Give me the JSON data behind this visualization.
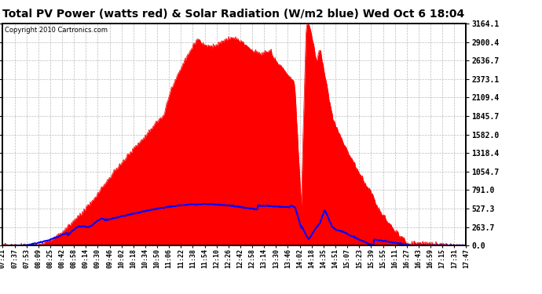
{
  "title": "Total PV Power (watts red) & Solar Radiation (W/m2 blue) Wed Oct 6 18:04",
  "copyright": "Copyright 2010 Cartronics.com",
  "yticks": [
    0.0,
    263.7,
    527.3,
    791.0,
    1054.7,
    1318.4,
    1582.0,
    1845.7,
    2109.4,
    2373.1,
    2636.7,
    2900.4,
    3164.1
  ],
  "ymax": 3164.1,
  "background_color": "#ffffff",
  "plot_bg_color": "#ffffff",
  "grid_color": "#aaaaaa",
  "fill_color": "#ff0000",
  "line_color": "#0000ff",
  "title_fontsize": 10,
  "x_tick_labels": [
    "07:21",
    "07:37",
    "07:53",
    "08:09",
    "08:25",
    "08:42",
    "08:58",
    "09:14",
    "09:30",
    "09:46",
    "10:02",
    "10:18",
    "10:34",
    "10:50",
    "11:06",
    "11:22",
    "11:38",
    "11:54",
    "12:10",
    "12:26",
    "12:42",
    "12:58",
    "13:14",
    "13:30",
    "13:46",
    "14:02",
    "14:18",
    "14:35",
    "14:51",
    "15:07",
    "15:23",
    "15:39",
    "15:55",
    "16:11",
    "16:27",
    "16:43",
    "16:59",
    "17:15",
    "17:31",
    "17:47"
  ],
  "n_points": 600
}
